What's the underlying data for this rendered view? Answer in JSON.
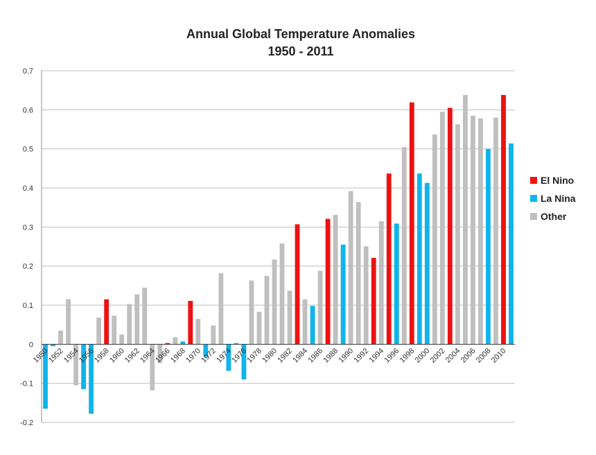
{
  "chart_data": {
    "type": "bar",
    "title": "Annual Global Temperature Anomalies",
    "subtitle": "1950 - 2011",
    "xlabel": "",
    "ylabel": "",
    "ylim": [
      -0.2,
      0.7
    ],
    "yticks": [
      -0.2,
      -0.1,
      0,
      0.1,
      0.2,
      0.3,
      0.4,
      0.5,
      0.6,
      0.7
    ],
    "ytick_labels": [
      "-0.2",
      "-0.1",
      "0",
      "0.1",
      "0.2",
      "0.3",
      "0.4",
      "0.5",
      "0.6",
      "0.7"
    ],
    "grid": true,
    "legend_position": "right",
    "categories": [
      "1950",
      "1951",
      "1952",
      "1953",
      "1954",
      "1955",
      "1956",
      "1957",
      "1958",
      "1959",
      "1960",
      "1961",
      "1962",
      "1963",
      "1964",
      "1965",
      "1966",
      "1967",
      "1968",
      "1969",
      "1970",
      "1971",
      "1972",
      "1973",
      "1974",
      "1975",
      "1976",
      "1977",
      "1978",
      "1979",
      "1980",
      "1981",
      "1982",
      "1983",
      "1984",
      "1985",
      "1986",
      "1987",
      "1988",
      "1989",
      "1990",
      "1991",
      "1992",
      "1993",
      "1994",
      "1995",
      "1996",
      "1997",
      "1998",
      "1999",
      "2000",
      "2001",
      "2002",
      "2003",
      "2004",
      "2005",
      "2006",
      "2007",
      "2008",
      "2009",
      "2010",
      "2011"
    ],
    "xtick_labels": [
      "1950",
      "1952",
      "1954",
      "1956",
      "1958",
      "1960",
      "1962",
      "1964",
      "1966",
      "1968",
      "1970",
      "1972",
      "1974",
      "1976",
      "1978",
      "1980",
      "1982",
      "1984",
      "1986",
      "1988",
      "1990",
      "1992",
      "1994",
      "1996",
      "1998",
      "2000",
      "2002",
      "2004",
      "2006",
      "2008",
      "2010"
    ],
    "values": [
      -0.165,
      -0.005,
      0.035,
      0.115,
      -0.105,
      -0.115,
      -0.178,
      0.068,
      0.115,
      0.073,
      0.025,
      0.103,
      0.128,
      0.145,
      -0.118,
      -0.048,
      0.003,
      0.018,
      0.007,
      0.111,
      0.065,
      -0.032,
      0.048,
      0.182,
      -0.068,
      0.003,
      -0.09,
      0.163,
      0.083,
      0.175,
      0.217,
      0.258,
      0.137,
      0.307,
      0.115,
      0.098,
      0.188,
      0.321,
      0.331,
      0.255,
      0.392,
      0.364,
      0.251,
      0.221,
      0.315,
      0.437,
      0.309,
      0.505,
      0.619,
      0.437,
      0.413,
      0.537,
      0.595,
      0.605,
      0.563,
      0.638,
      0.585,
      0.578,
      0.5,
      0.58,
      0.638,
      0.514
    ],
    "types": [
      "La Nina",
      "La Nina",
      "Other",
      "Other",
      "Other",
      "La Nina",
      "La Nina",
      "Other",
      "El Nino",
      "Other",
      "Other",
      "Other",
      "Other",
      "Other",
      "Other",
      "Other",
      "El Nino",
      "Other",
      "La Nina",
      "El Nino",
      "Other",
      "La Nina",
      "Other",
      "Other",
      "La Nina",
      "La Nina",
      "La Nina",
      "Other",
      "Other",
      "Other",
      "Other",
      "Other",
      "Other",
      "El Nino",
      "Other",
      "La Nina",
      "Other",
      "El Nino",
      "Other",
      "La Nina",
      "Other",
      "Other",
      "Other",
      "El Nino",
      "Other",
      "El Nino",
      "La Nina",
      "Other",
      "El Nino",
      "La Nina",
      "La Nina",
      "Other",
      "Other",
      "El Nino",
      "Other",
      "Other",
      "Other",
      "Other",
      "La Nina",
      "Other",
      "El Nino",
      "La Nina"
    ],
    "legend": [
      {
        "name": "El Nino",
        "color": "#ee1111"
      },
      {
        "name": "La Nina",
        "color": "#0fb4ea"
      },
      {
        "name": "Other",
        "color": "#bfbfbf"
      }
    ]
  }
}
